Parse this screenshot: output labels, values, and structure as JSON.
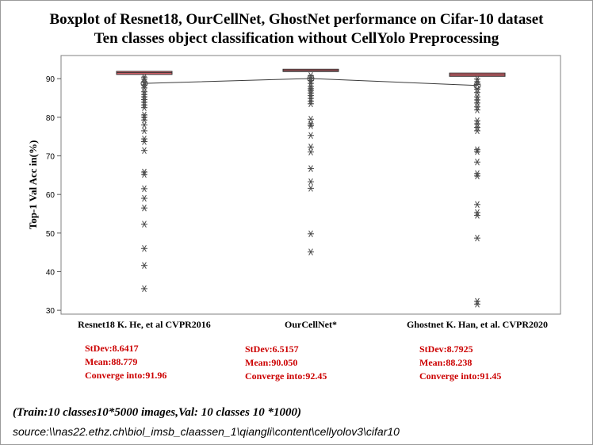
{
  "chart_data": {
    "type": "boxplot",
    "title": "Boxplot of Resnet18, OurCellNet, GhostNet performance on Cifar-10 dataset",
    "subtitle": "Ten classes object classification without CellYolo Preprocessing",
    "xlabel": "",
    "ylabel": "Top-1 Val Acc in(%)",
    "ylim": [
      29,
      96
    ],
    "yticks": [
      30,
      40,
      50,
      60,
      70,
      80,
      90
    ],
    "grid": false,
    "colors": {
      "box": "#e8666f",
      "outlier": "#4a4a4a",
      "mean_line": "#3a3a3a",
      "stats_text": "#cc0000"
    },
    "categories": [
      "Resnet18 K. He, et al CVPR2016",
      "OurCellNet*",
      "Ghostnet K. Han, et al. CVPR2020"
    ],
    "boxes": [
      {
        "q1": 91.1,
        "median": 91.55,
        "q3": 91.9,
        "mean": 88.779
      },
      {
        "q1": 91.85,
        "median": 92.1,
        "q3": 92.45,
        "mean": 90.05
      },
      {
        "q1": 90.6,
        "median": 91.0,
        "q3": 91.45,
        "mean": 88.238
      }
    ],
    "outliers": [
      [
        90.4,
        89.9,
        89.1,
        88.4,
        87.6,
        86.6,
        85.9,
        85.3,
        84.6,
        83.9,
        83.2,
        82.5,
        80.6,
        80.0,
        79.3,
        78.0,
        76.5,
        74.4,
        73.7,
        71.4,
        65.8,
        65.2,
        61.5,
        59.0,
        56.5,
        52.3,
        46.0,
        41.6,
        35.6
      ],
      [
        90.8,
        90.2,
        89.5,
        88.8,
        88.0,
        87.4,
        86.9,
        86.3,
        85.6,
        84.9,
        84.2,
        83.5,
        79.5,
        78.3,
        77.8,
        75.3,
        72.3,
        71.0,
        66.7,
        63.3,
        61.6,
        49.8,
        45.1
      ],
      [
        89.9,
        89.2,
        88.5,
        87.3,
        86.4,
        85.3,
        84.5,
        83.7,
        82.7,
        81.9,
        79.1,
        78.3,
        77.4,
        76.5,
        71.6,
        71.1,
        68.4,
        65.4,
        64.8,
        57.4,
        55.3,
        54.6,
        48.7,
        32.3,
        31.6
      ]
    ],
    "stats": [
      {
        "stdev": "StDev:8.6417",
        "mean": "Mean:88.779",
        "converge": "Converge into:91.96"
      },
      {
        "stdev": "StDev:6.5157",
        "mean": "Mean:90.050",
        "converge": "Converge into:92.45"
      },
      {
        "stdev": "StDev:8.7925",
        "mean": "Mean:88.238",
        "converge": "Converge into:91.45"
      }
    ]
  },
  "footer": {
    "train_note": "(Train:10 classes10*5000 images,Val: 10 classes 10 *1000)",
    "source": "source:\\\\nas22.ethz.ch\\biol_imsb_claassen_1\\qiangli\\content\\cellyolov3\\cifar10"
  }
}
